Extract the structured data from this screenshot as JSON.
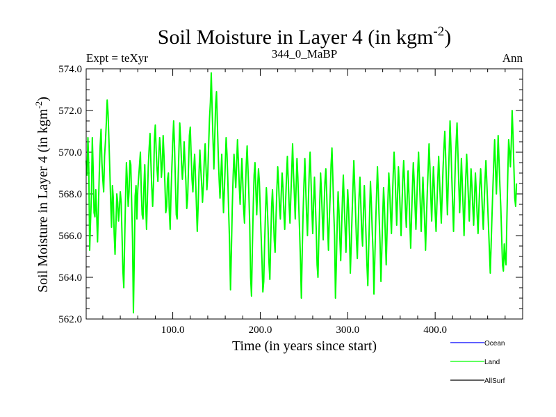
{
  "chart_data": {
    "type": "line",
    "title": "Soil Moisture in Layer 4 (in kgm",
    "title_sup": "-2",
    "title_end": ")",
    "subtitle_left": "Expt = teXyr",
    "subtitle_center": "344_0_MaBP",
    "subtitle_right": "Ann",
    "xlabel": "Time (in years since start)",
    "ylabel": "Soil Moisture in Layer 4 (in kgm",
    "ylabel_sup": "-2",
    "ylabel_end": ")",
    "xlim": [
      1,
      500
    ],
    "ylim": [
      562.0,
      574.0
    ],
    "xticks": [
      100,
      200,
      300,
      400
    ],
    "xtick_labels": [
      "100.0",
      "200.0",
      "300.0",
      "400.0"
    ],
    "yticks": [
      562,
      564,
      566,
      568,
      570,
      572,
      574
    ],
    "ytick_labels": [
      "562.0",
      "564.0",
      "566.0",
      "568.0",
      "570.0",
      "572.0",
      "574.0"
    ],
    "series": [
      {
        "name": "Land",
        "color": "#00ff00",
        "x_start": 1,
        "x_step": 1,
        "values": [
          569.6,
          568.9,
          570.7,
          569.2,
          565.3,
          566.7,
          567.9,
          570.7,
          569.2,
          567.1,
          566.9,
          568.2,
          567.0,
          565.7,
          567.4,
          569.0,
          570.3,
          571.1,
          569.5,
          568.7,
          568.1,
          569.8,
          570.5,
          571.4,
          572.5,
          571.9,
          570.6,
          569.2,
          567.6,
          566.4,
          568.4,
          567.8,
          566.1,
          565.1,
          566.5,
          568.0,
          567.6,
          566.7,
          567.3,
          568.1,
          567.6,
          566.0,
          564.3,
          563.5,
          565.7,
          567.8,
          569.5,
          568.6,
          567.4,
          568.1,
          569.6,
          569.4,
          567.6,
          565.8,
          562.3,
          565.0,
          567.9,
          568.4,
          566.8,
          568.2,
          568.8,
          569.4,
          570.0,
          568.1,
          567.0,
          566.8,
          568.3,
          569.4,
          567.6,
          566.3,
          567.8,
          569.3,
          570.2,
          570.9,
          569.5,
          568.3,
          567.4,
          568.5,
          570.6,
          571.3,
          570.1,
          569.2,
          568.6,
          569.8,
          570.7,
          570.1,
          568.8,
          569.4,
          570.8,
          569.8,
          568.5,
          567.1,
          567.4,
          568.7,
          569.0,
          567.2,
          566.3,
          568.0,
          569.3,
          570.5,
          571.5,
          570.3,
          568.6,
          567.0,
          566.8,
          568.5,
          570.0,
          571.4,
          570.6,
          569.5,
          568.7,
          569.4,
          570.5,
          569.5,
          568.6,
          567.3,
          567.8,
          569.3,
          570.8,
          571.2,
          569.9,
          568.7,
          568.1,
          569.2,
          569.9,
          568.8,
          567.5,
          566.2,
          567.4,
          569.0,
          570.1,
          569.2,
          568.5,
          567.6,
          568.4,
          569.6,
          570.4,
          569.3,
          568.2,
          568.9,
          570.3,
          571.6,
          572.4,
          573.8,
          572.1,
          570.6,
          569.2,
          570.7,
          572.3,
          572.9,
          571.4,
          569.9,
          568.7,
          567.8,
          568.9,
          569.9,
          568.4,
          567.1,
          568.2,
          569.4,
          570.7,
          569.9,
          568.6,
          567.0,
          565.6,
          563.4,
          565.2,
          567.3,
          568.8,
          569.9,
          569.1,
          568.3,
          569.4,
          570.6,
          569.6,
          568.4,
          567.5,
          568.6,
          569.7,
          568.6,
          567.3,
          566.6,
          568.1,
          569.4,
          570.3,
          569.2,
          568.0,
          566.5,
          564.0,
          563.1,
          565.4,
          567.4,
          568.9,
          569.5,
          568.2,
          567.0,
          568.3,
          569.2,
          568.6,
          567.3,
          566.0,
          564.8,
          563.3,
          563.8,
          565.6,
          567.1,
          568.3,
          567.5,
          566.3,
          564.7,
          563.9,
          565.8,
          567.4,
          568.2,
          567.1,
          565.8,
          565.2,
          566.8,
          568.2,
          569.3,
          568.5,
          567.4,
          566.8,
          568.0,
          569.0,
          568.3,
          567.1,
          566.3,
          567.6,
          568.8,
          569.8,
          568.7,
          567.5,
          566.6,
          567.9,
          569.1,
          570.4,
          569.0,
          568.0,
          566.8,
          568.3,
          569.7,
          568.8,
          567.5,
          566.2,
          564.8,
          563.0,
          565.2,
          567.1,
          568.5,
          569.7,
          568.3,
          567.0,
          566.0,
          567.6,
          569.0,
          570.0,
          568.7,
          567.3,
          566.1,
          567.5,
          568.8,
          567.6,
          566.3,
          564.6,
          564.0,
          565.9,
          567.5,
          569.0,
          568.1,
          566.9,
          565.8,
          567.3,
          568.6,
          569.2,
          568.0,
          566.5,
          565.3,
          566.8,
          568.0,
          569.4,
          570.2,
          568.8,
          567.2,
          566.0,
          563.0,
          564.6,
          566.6,
          568.1,
          567.2,
          565.9,
          564.8,
          566.3,
          567.8,
          568.9,
          567.6,
          566.4,
          565.2,
          566.9,
          568.2,
          567.3,
          566.0,
          564.2,
          565.5,
          567.0,
          568.3,
          569.6,
          568.4,
          567.1,
          565.8,
          564.9,
          566.5,
          567.9,
          568.8,
          567.5,
          566.2,
          565.5,
          567.1,
          568.4,
          567.2,
          565.9,
          564.6,
          563.6,
          565.4,
          567.0,
          568.6,
          567.6,
          566.3,
          565.2,
          563.2,
          564.9,
          566.6,
          568.0,
          569.3,
          568.1,
          566.8,
          565.6,
          563.8,
          565.3,
          566.9,
          568.3,
          567.4,
          566.0,
          564.6,
          566.2,
          567.7,
          569.0,
          568.2,
          567.0,
          566.1,
          567.6,
          568.9,
          570.0,
          569.1,
          567.8,
          566.5,
          567.9,
          569.3,
          568.4,
          567.2,
          566.0,
          567.4,
          568.7,
          569.6,
          568.5,
          567.3,
          566.4,
          567.8,
          569.1,
          568.0,
          566.7,
          565.4,
          566.9,
          568.3,
          569.5,
          568.6,
          567.4,
          566.3,
          567.7,
          569.0,
          570.0,
          568.8,
          567.5,
          566.2,
          567.6,
          568.8,
          567.7,
          566.6,
          565.3,
          566.8,
          568.1,
          569.2,
          570.4,
          569.3,
          567.9,
          566.7,
          568.0,
          569.3,
          568.3,
          567.1,
          566.2,
          567.5,
          568.7,
          569.8,
          568.7,
          567.6,
          566.6,
          567.9,
          569.2,
          570.2,
          571.0,
          569.8,
          568.4,
          567.0,
          568.6,
          570.0,
          571.5,
          570.3,
          568.8,
          567.5,
          566.2,
          567.8,
          569.4,
          570.5,
          571.4,
          570.0,
          568.5,
          567.1,
          568.4,
          569.7,
          568.5,
          567.3,
          566.0,
          567.5,
          568.8,
          569.9,
          568.9,
          567.8,
          566.7,
          568.0,
          569.2,
          568.4,
          567.4,
          566.5,
          567.8,
          569.0,
          568.1,
          567.0,
          566.1,
          567.3,
          568.4,
          569.2,
          568.3,
          567.2,
          566.3,
          567.5,
          568.7,
          569.6,
          568.6,
          567.5,
          566.4,
          565.3,
          564.2,
          565.6,
          567.0,
          568.3,
          569.5,
          570.6,
          569.2,
          568.0,
          569.4,
          570.8,
          569.6,
          568.4,
          567.4,
          566.0,
          564.6,
          564.3,
          565.6,
          564.9,
          564.6,
          566.8,
          568.9,
          570.6,
          570.1,
          569.3,
          570.4,
          572.0,
          570.8,
          569.3,
          567.8,
          567.4,
          568.5
        ]
      },
      {
        "name": "Ocean",
        "color": "#0000ff",
        "values": []
      },
      {
        "name": "AllSurf",
        "color": "#000000",
        "values": []
      }
    ],
    "legend": [
      "Ocean",
      "Land",
      "AllSurf"
    ],
    "legend_position": "bottom-right",
    "grid": false
  }
}
